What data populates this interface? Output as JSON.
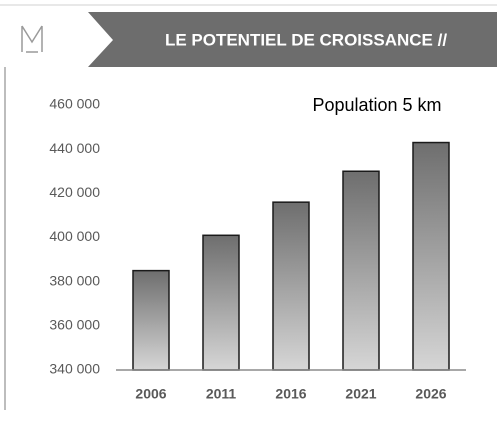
{
  "chart_data": {
    "type": "bar",
    "title": "LE POTENTIEL DE CROISSANCE //",
    "subtitle": "Population 5 km",
    "categories": [
      "2006",
      "2011",
      "2016",
      "2021",
      "2026"
    ],
    "values": [
      385000,
      401000,
      416000,
      430000,
      443000
    ],
    "ylim": [
      340000,
      460000
    ],
    "yticks": [
      {
        "value": 340000,
        "label": "340 000"
      },
      {
        "value": 360000,
        "label": "360 000"
      },
      {
        "value": 380000,
        "label": "380 000"
      },
      {
        "value": 400000,
        "label": "400 000"
      },
      {
        "value": 420000,
        "label": "420 000"
      },
      {
        "value": 440000,
        "label": "440 000"
      },
      {
        "value": 460000,
        "label": "460 000"
      }
    ],
    "grid": false
  }
}
